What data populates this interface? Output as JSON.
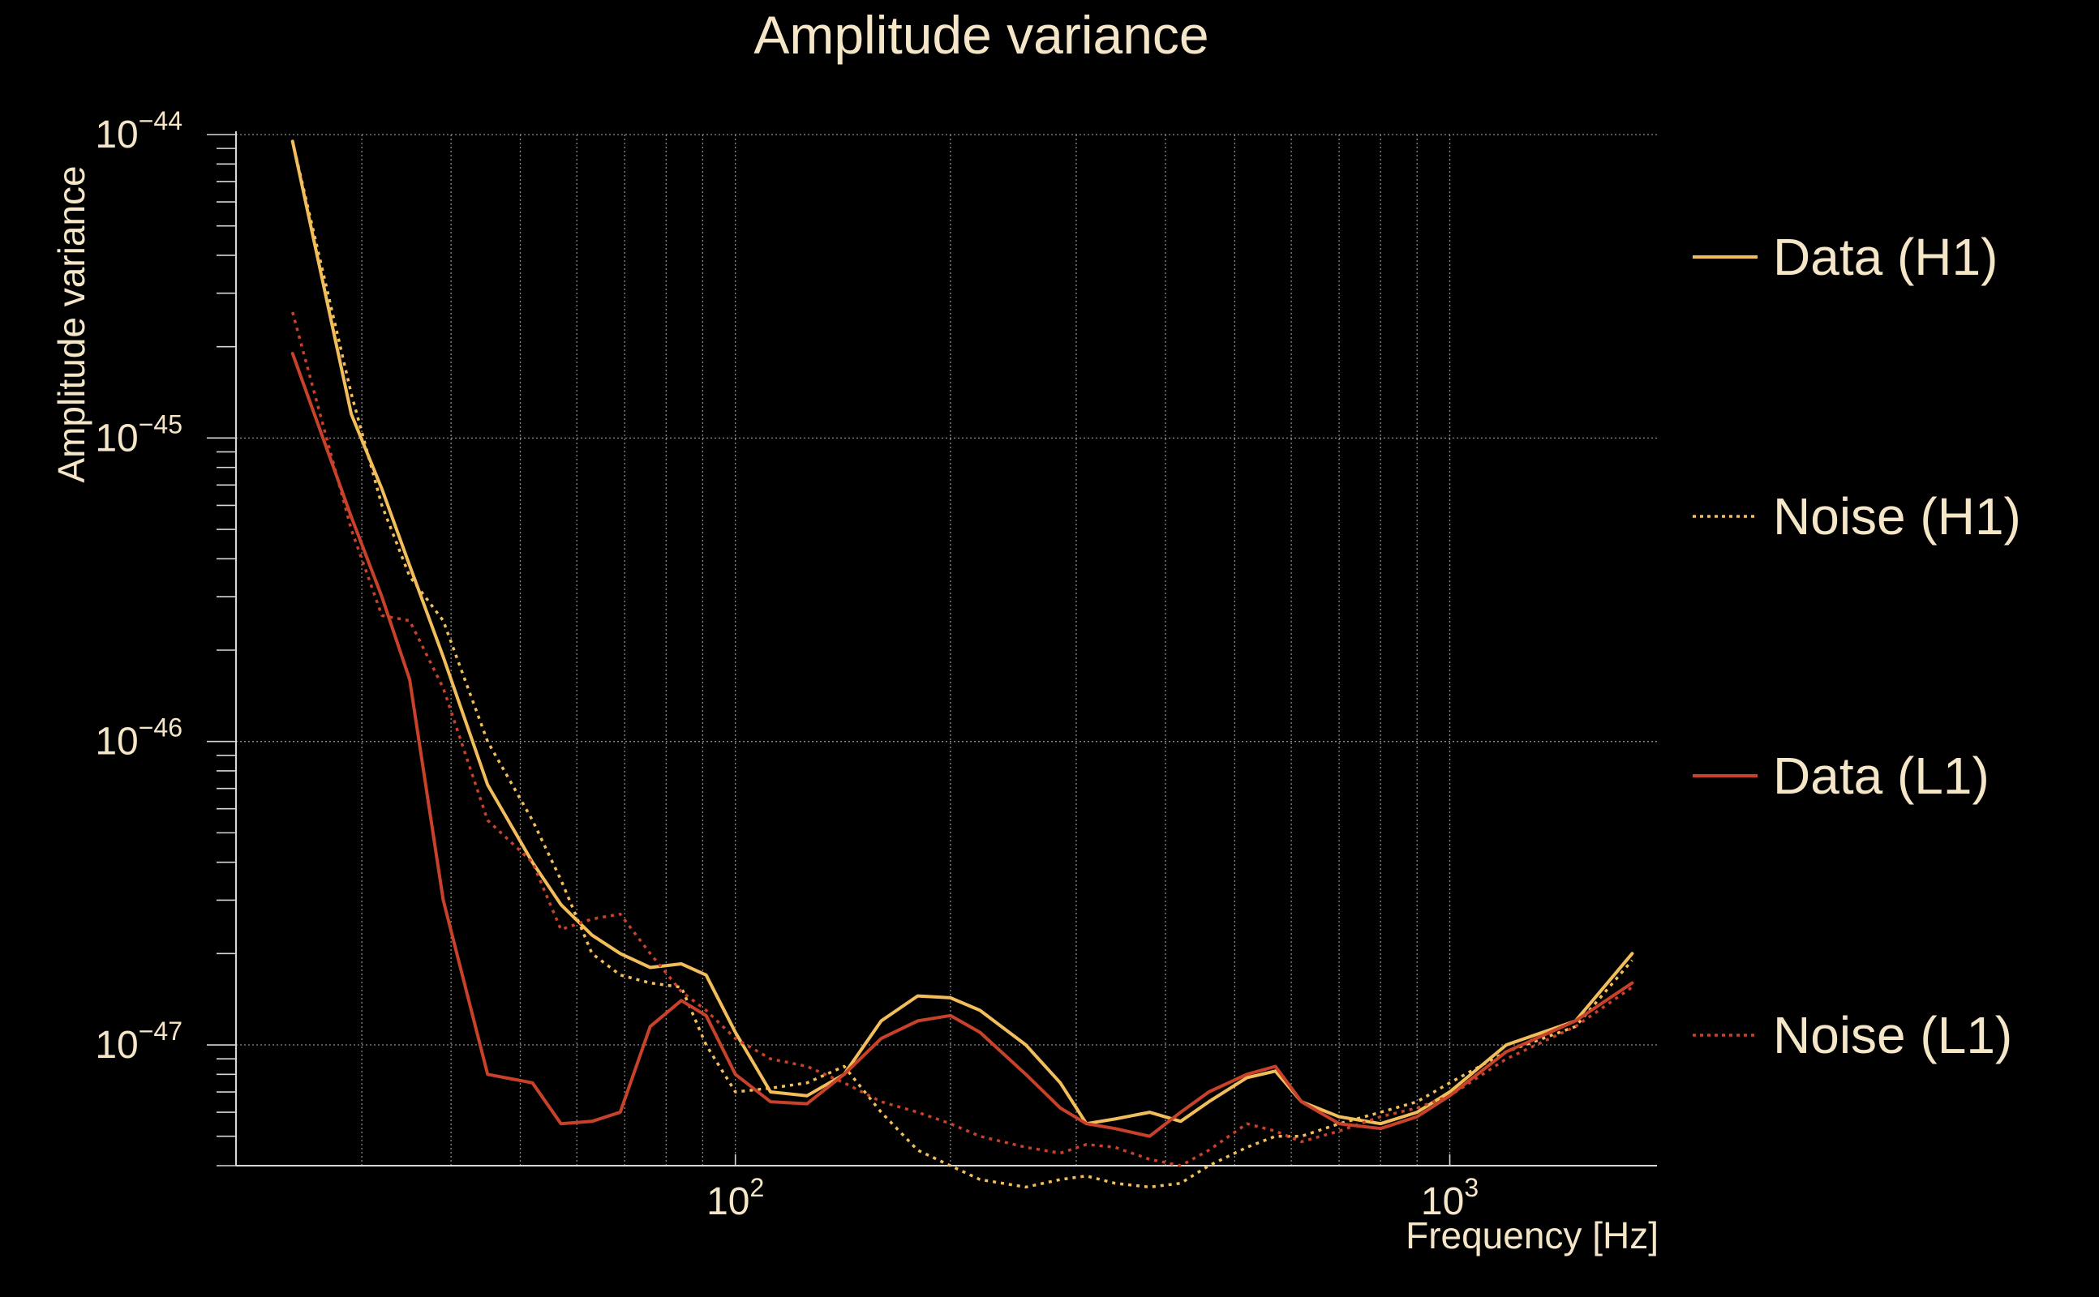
{
  "chart_data": {
    "type": "line",
    "title": "Amplitude variance",
    "xlabel": "Frequency [Hz]",
    "ylabel": "Amplitude variance",
    "x_scale": "log",
    "y_scale": "log",
    "xlim": [
      20,
      1950
    ],
    "ylim": [
      4e-48,
      1e-44
    ],
    "x_major_ticks": [
      {
        "value": 100,
        "base": "10",
        "exp": "2"
      },
      {
        "value": 1000,
        "base": "10",
        "exp": "3"
      }
    ],
    "y_major_ticks": [
      {
        "value": 1e-44,
        "base": "10",
        "exp": "−44"
      },
      {
        "value": 1e-45,
        "base": "10",
        "exp": "−45"
      },
      {
        "value": 1e-46,
        "base": "10",
        "exp": "−46"
      },
      {
        "value": 1e-47,
        "base": "10",
        "exp": "−47"
      }
    ],
    "grid": true,
    "legend_position": "right",
    "background": "#000000",
    "text_color": "#f5e6c8",
    "series": [
      {
        "name": "Data (H1)",
        "color": "#f2be5c",
        "dash": "solid",
        "x": [
          24,
          29,
          32,
          35,
          39,
          45,
          52,
          57,
          63,
          69,
          76,
          84,
          91,
          100,
          112,
          126,
          142,
          160,
          180,
          200,
          220,
          255,
          285,
          310,
          340,
          380,
          420,
          460,
          520,
          570,
          620,
          700,
          800,
          900,
          1000,
          1200,
          1500,
          1800
        ],
        "y": [
          9.5e-45,
          1.2e-45,
          6.8e-46,
          3.8e-46,
          1.9e-46,
          7.2e-47,
          4e-47,
          2.9e-47,
          2.3e-47,
          2e-47,
          1.8e-47,
          1.85e-47,
          1.7e-47,
          1.1e-47,
          7e-48,
          6.8e-48,
          8e-48,
          1.2e-47,
          1.45e-47,
          1.43e-47,
          1.3e-47,
          1e-47,
          7.5e-48,
          5.5e-48,
          5.7e-48,
          6e-48,
          5.6e-48,
          6.5e-48,
          7.8e-48,
          8.2e-48,
          6.5e-48,
          5.8e-48,
          5.5e-48,
          6e-48,
          7e-48,
          1e-47,
          1.2e-47,
          2e-47
        ]
      },
      {
        "name": "Noise (H1)",
        "color": "#f2be5c",
        "dash": "dotted",
        "x": [
          24,
          29,
          32,
          35,
          39,
          45,
          52,
          57,
          63,
          69,
          76,
          84,
          91,
          100,
          112,
          126,
          142,
          160,
          180,
          200,
          220,
          255,
          285,
          310,
          340,
          380,
          420,
          460,
          520,
          570,
          620,
          700,
          800,
          900,
          1000,
          1200,
          1500,
          1800
        ],
        "y": [
          9.5e-45,
          1.4e-45,
          6e-46,
          3.5e-46,
          2.5e-46,
          1e-46,
          5.5e-47,
          3.5e-47,
          2e-47,
          1.7e-47,
          1.6e-47,
          1.55e-47,
          1e-47,
          7e-48,
          7.2e-48,
          7.5e-48,
          8.5e-48,
          6e-48,
          4.5e-48,
          4e-48,
          3.6e-48,
          3.4e-48,
          3.6e-48,
          3.7e-48,
          3.5e-48,
          3.4e-48,
          3.5e-48,
          4e-48,
          4.6e-48,
          5e-48,
          5e-48,
          5.5e-48,
          6e-48,
          6.5e-48,
          7.5e-48,
          9.5e-48,
          1.15e-47,
          1.9e-47
        ]
      },
      {
        "name": "Data (L1)",
        "color": "#c8412a",
        "dash": "solid",
        "x": [
          24,
          29,
          32,
          35,
          39,
          45,
          52,
          57,
          63,
          69,
          76,
          84,
          91,
          100,
          112,
          126,
          142,
          160,
          180,
          200,
          220,
          255,
          285,
          310,
          340,
          380,
          420,
          460,
          520,
          570,
          620,
          700,
          800,
          900,
          1000,
          1200,
          1500,
          1800
        ],
        "y": [
          1.9e-45,
          5.5e-46,
          3e-46,
          1.6e-46,
          3e-47,
          8e-48,
          7.5e-48,
          5.5e-48,
          5.6e-48,
          6e-48,
          1.15e-47,
          1.4e-47,
          1.25e-47,
          8e-48,
          6.5e-48,
          6.4e-48,
          8e-48,
          1.05e-47,
          1.2e-47,
          1.25e-47,
          1.1e-47,
          8e-48,
          6.2e-48,
          5.5e-48,
          5.3e-48,
          5e-48,
          6e-48,
          7e-48,
          8e-48,
          8.5e-48,
          6.5e-48,
          5.5e-48,
          5.3e-48,
          5.8e-48,
          6.8e-48,
          9.5e-48,
          1.2e-47,
          1.6e-47
        ]
      },
      {
        "name": "Noise (L1)",
        "color": "#c8412a",
        "dash": "dotted",
        "x": [
          24,
          29,
          32,
          35,
          39,
          45,
          52,
          57,
          63,
          69,
          76,
          84,
          91,
          100,
          112,
          126,
          142,
          160,
          180,
          200,
          220,
          255,
          285,
          310,
          340,
          380,
          420,
          460,
          520,
          570,
          620,
          700,
          800,
          900,
          1000,
          1200,
          1500,
          1800
        ],
        "y": [
          2.6e-45,
          5e-46,
          2.6e-46,
          2.5e-46,
          1.5e-46,
          5.5e-47,
          4e-47,
          2.4e-47,
          2.6e-47,
          2.7e-47,
          2e-47,
          1.5e-47,
          1.3e-47,
          1.05e-47,
          9e-48,
          8.5e-48,
          7.5e-48,
          6.5e-48,
          6e-48,
          5.5e-48,
          5e-48,
          4.6e-48,
          4.4e-48,
          4.7e-48,
          4.6e-48,
          4.2e-48,
          4e-48,
          4.5e-48,
          5.5e-48,
          5.2e-48,
          4.8e-48,
          5.2e-48,
          5.8e-48,
          6.2e-48,
          6.8e-48,
          9e-48,
          1.15e-47,
          1.55e-47
        ]
      }
    ]
  }
}
